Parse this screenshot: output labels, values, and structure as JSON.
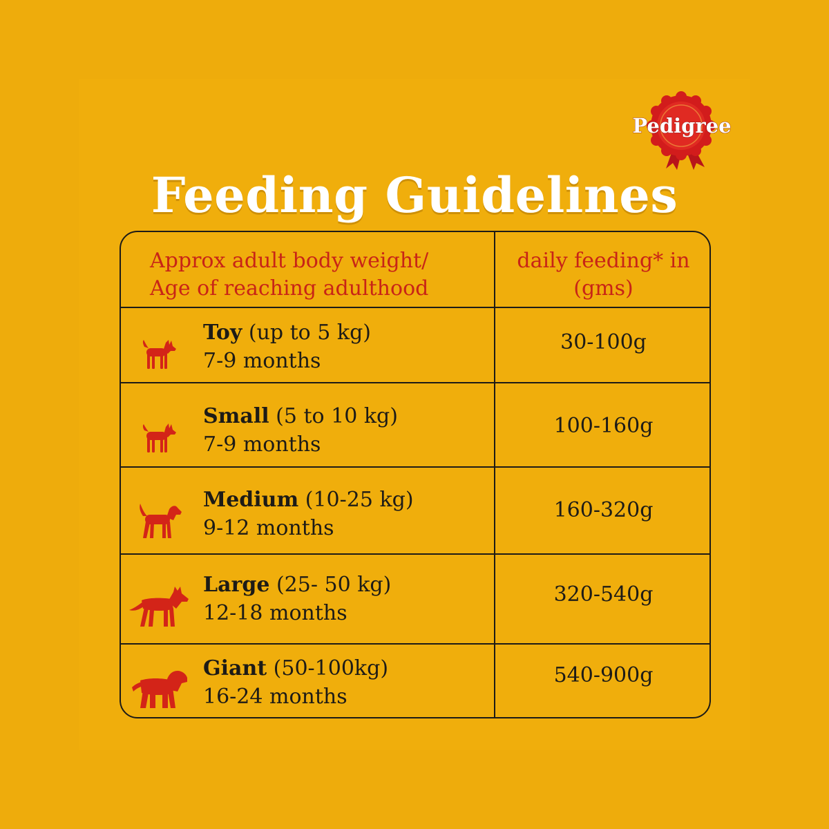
{
  "brand": {
    "name": "Pedigree",
    "rosette_color": "#D21C1C"
  },
  "colors": {
    "background": "#EEAC0C",
    "heading_text": "#C82417",
    "dog_icon": "#D32418",
    "body_text": "#1D1B17",
    "title_text": "#FFFFFF"
  },
  "title": "Feeding Guidelines",
  "table": {
    "header": {
      "left_line1": "Approx adult body weight/",
      "left_line2": "Age of reaching adulthood",
      "right_line1": "daily feeding* in",
      "right_line2": "(gms)"
    },
    "rows": [
      {
        "icon": "toy-dog-icon",
        "size": "Toy",
        "weight": " (up to 5 kg)",
        "age": "7-9 months",
        "amount": "30-100g"
      },
      {
        "icon": "small-dog-icon",
        "size": "Small",
        "weight": " (5 to 10 kg)",
        "age": "7-9 months",
        "amount": "100-160g"
      },
      {
        "icon": "medium-dog-icon",
        "size": "Medium",
        "weight": " (10-25 kg)",
        "age": "9-12 months",
        "amount": "160-320g"
      },
      {
        "icon": "large-dog-icon",
        "size": "Large",
        "weight": " (25- 50 kg)",
        "age": "12-18 months",
        "amount": "320-540g"
      },
      {
        "icon": "giant-dog-icon",
        "size": "Giant",
        "weight": " (50-100kg)",
        "age": "16-24 months",
        "amount": "540-900g"
      }
    ]
  }
}
